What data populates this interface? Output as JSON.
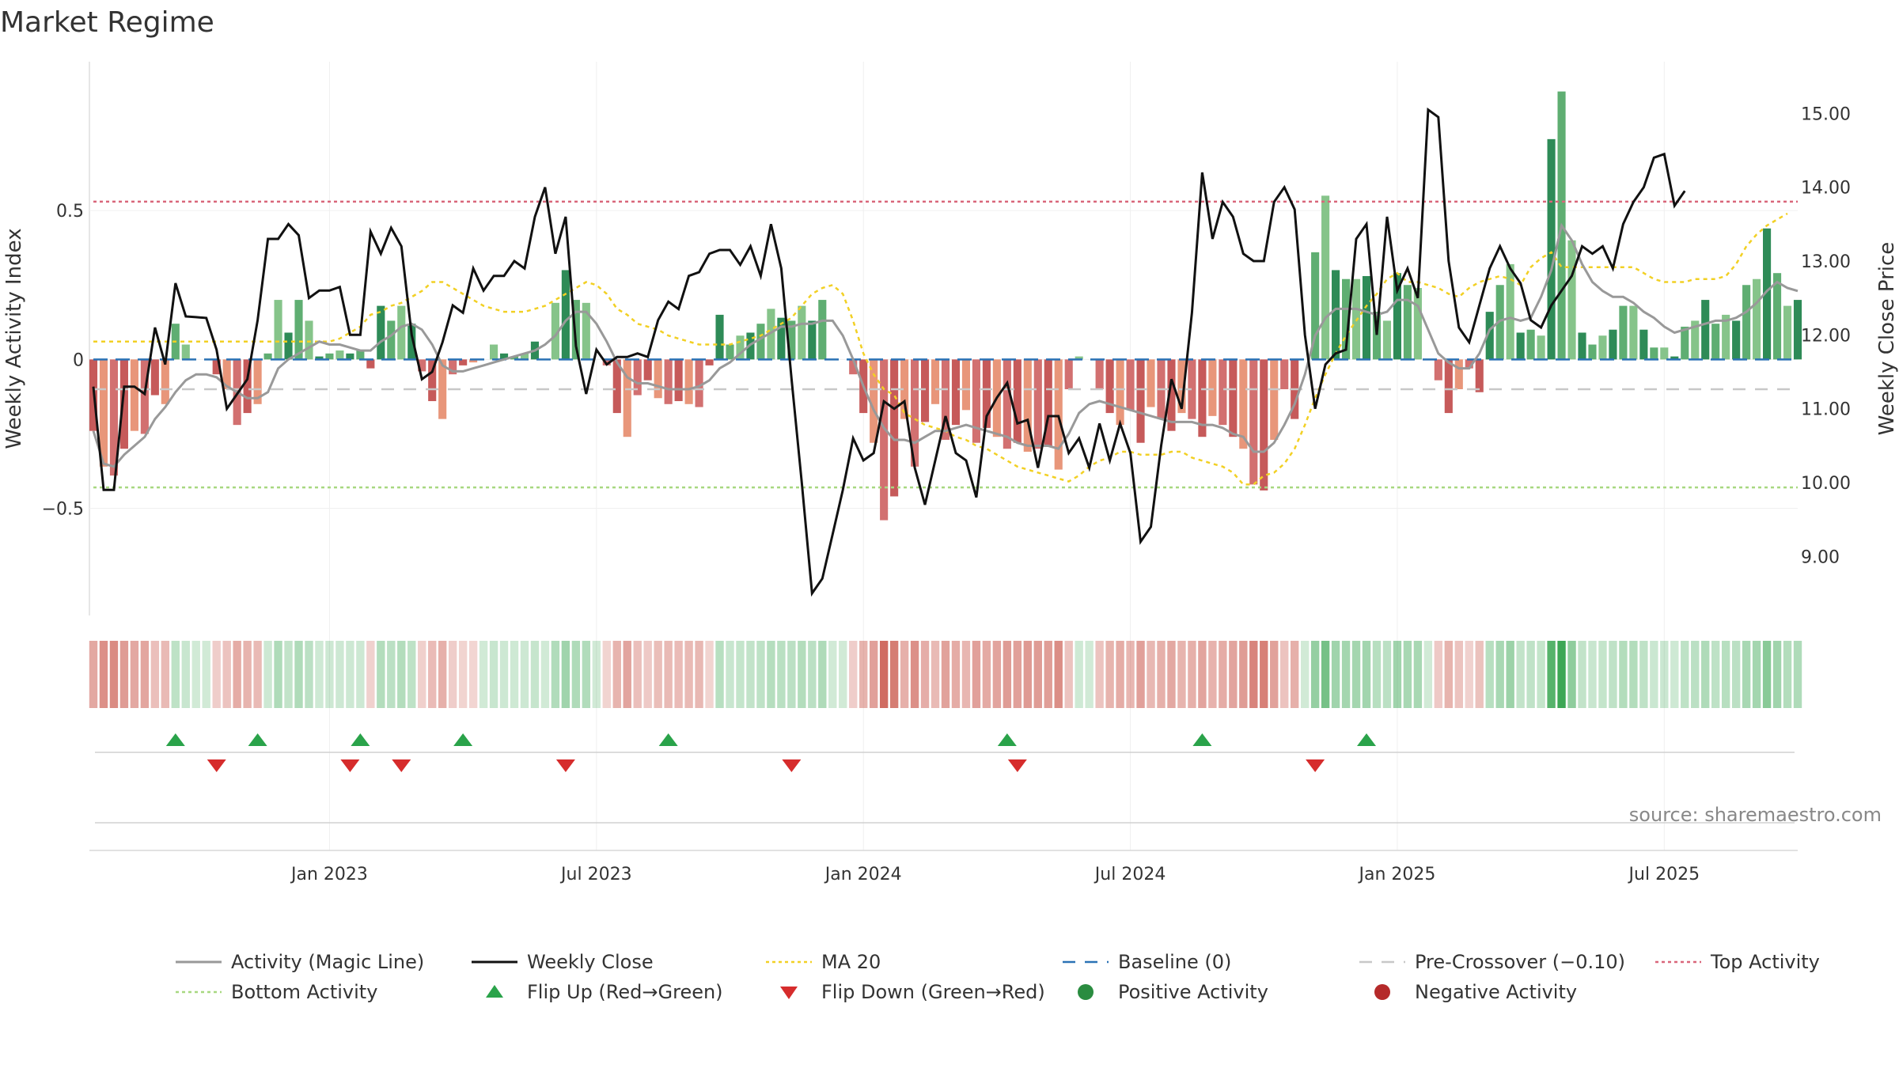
{
  "chart_data": {
    "type": "bar+line",
    "title": "Market Regime",
    "ylabel_left": "Weekly Activity Index",
    "ylabel_right": "Weekly Close Price",
    "source": "source: sharemaestro.com",
    "y_left_ticks": [
      "0.5",
      "0",
      "−0.5"
    ],
    "y_left_tick_values": [
      0.5,
      0,
      -0.5
    ],
    "y_right_ticks": [
      "15.00",
      "14.00",
      "13.00",
      "12.00",
      "11.00",
      "10.00",
      "9.00"
    ],
    "y_right_tick_values": [
      15,
      14,
      13,
      12,
      11,
      10,
      9
    ],
    "x_ticks": [
      {
        "label": "Jan 2023",
        "week": 23
      },
      {
        "label": "Jul 2023",
        "week": 49
      },
      {
        "label": "Jan 2024",
        "week": 75
      },
      {
        "label": "Jul 2024",
        "week": 101
      },
      {
        "label": "Jan 2025",
        "week": 127
      },
      {
        "label": "Jul 2025",
        "week": 153
      }
    ],
    "ylim_left": [
      -0.86,
      1.0
    ],
    "ylim_right": [
      8.2,
      15.7
    ],
    "reference_lines": {
      "top_activity": 0.53,
      "bottom_activity": -0.43,
      "baseline": 0,
      "pre_crossover": -0.1
    },
    "activity": [
      -0.24,
      -0.36,
      -0.39,
      -0.3,
      -0.24,
      -0.25,
      -0.12,
      -0.15,
      0.12,
      0.05,
      0.0,
      0.0,
      -0.05,
      -0.1,
      -0.22,
      -0.18,
      -0.15,
      0.02,
      0.2,
      0.09,
      0.2,
      0.13,
      0.01,
      0.02,
      0.03,
      0.02,
      0.03,
      -0.03,
      0.18,
      0.13,
      0.18,
      0.12,
      -0.04,
      -0.14,
      -0.2,
      -0.05,
      -0.02,
      -0.01,
      0.0,
      0.05,
      0.02,
      0.01,
      0.02,
      0.06,
      0.0,
      0.19,
      0.3,
      0.2,
      0.19,
      0.0,
      -0.02,
      -0.18,
      -0.26,
      -0.12,
      -0.07,
      -0.13,
      -0.15,
      -0.14,
      -0.15,
      -0.16,
      -0.02,
      0.15,
      0.05,
      0.08,
      0.09,
      0.12,
      0.17,
      0.14,
      0.13,
      0.18,
      0.13,
      0.2,
      0.0,
      0.0,
      -0.05,
      -0.18,
      -0.28,
      -0.54,
      -0.46,
      -0.2,
      -0.36,
      -0.21,
      -0.15,
      -0.27,
      -0.22,
      -0.17,
      -0.28,
      -0.23,
      -0.26,
      -0.3,
      -0.28,
      -0.31,
      -0.3,
      -0.29,
      -0.37,
      -0.1,
      0.01,
      0.0,
      -0.1,
      -0.18,
      -0.22,
      -0.17,
      -0.28,
      -0.16,
      -0.2,
      -0.24,
      -0.18,
      -0.2,
      -0.26,
      -0.19,
      -0.22,
      -0.26,
      -0.3,
      -0.42,
      -0.44,
      -0.27,
      -0.1,
      -0.2,
      0.0,
      0.36,
      0.55,
      0.3,
      0.27,
      0.27,
      0.28,
      0.16,
      0.13,
      0.29,
      0.25,
      0.24,
      0.0,
      -0.07,
      -0.18,
      -0.1,
      -0.03,
      -0.11,
      0.16,
      0.25,
      0.32,
      0.09,
      0.1,
      0.08,
      0.74,
      0.9,
      0.4,
      0.09,
      0.05,
      0.08,
      0.1,
      0.18,
      0.18,
      0.1,
      0.04,
      0.04,
      0.01,
      0.11,
      0.13,
      0.2,
      0.12,
      0.15,
      0.13,
      0.25,
      0.27,
      0.44,
      0.29,
      0.18,
      0.2
    ],
    "weekly_close": [
      11.3,
      9.9,
      9.9,
      11.3,
      11.3,
      11.2,
      12.1,
      11.6,
      12.7,
      12.25,
      12.24,
      12.23,
      11.8,
      11.0,
      11.2,
      11.4,
      12.2,
      13.3,
      13.3,
      13.5,
      13.35,
      12.5,
      12.6,
      12.6,
      12.65,
      12.0,
      12.0,
      13.4,
      13.1,
      13.45,
      13.2,
      12.0,
      11.4,
      11.5,
      11.9,
      12.4,
      12.3,
      12.9,
      12.6,
      12.8,
      12.8,
      13.0,
      12.9,
      13.6,
      14.0,
      13.1,
      13.6,
      11.85,
      11.2,
      11.8,
      11.6,
      11.7,
      11.7,
      11.75,
      11.7,
      12.2,
      12.45,
      12.35,
      12.8,
      12.85,
      13.1,
      13.15,
      13.15,
      12.95,
      13.2,
      12.8,
      13.5,
      12.9,
      11.4,
      10.0,
      8.5,
      8.7,
      9.3,
      9.9,
      10.6,
      10.3,
      10.4,
      11.1,
      11.0,
      11.1,
      10.2,
      9.7,
      10.3,
      10.9,
      10.4,
      10.3,
      9.8,
      10.9,
      11.15,
      11.35,
      10.8,
      10.85,
      10.2,
      10.9,
      10.9,
      10.4,
      10.6,
      10.2,
      10.8,
      10.3,
      10.8,
      10.4,
      9.2,
      9.4,
      10.5,
      11.4,
      11.0,
      12.3,
      14.2,
      13.3,
      13.8,
      13.6,
      13.1,
      13.0,
      13.0,
      13.8,
      14.0,
      13.7,
      12.0,
      11.0,
      11.6,
      11.75,
      11.8,
      13.3,
      13.5,
      12.0,
      13.6,
      12.6,
      12.9,
      12.5,
      15.05,
      14.95,
      13.0,
      12.1,
      11.9,
      12.4,
      12.9,
      13.2,
      12.9,
      12.7,
      12.2,
      12.1,
      12.4,
      12.6,
      12.8,
      13.2,
      13.1,
      13.2,
      12.9,
      13.5,
      13.8,
      14.0,
      14.4,
      14.45,
      13.75,
      13.95
    ],
    "magic_line": [
      -0.24,
      -0.35,
      -0.36,
      -0.32,
      -0.29,
      -0.26,
      -0.2,
      -0.16,
      -0.11,
      -0.07,
      -0.05,
      -0.05,
      -0.06,
      -0.09,
      -0.11,
      -0.13,
      -0.13,
      -0.11,
      -0.03,
      0.0,
      0.02,
      0.04,
      0.06,
      0.05,
      0.05,
      0.04,
      0.03,
      0.03,
      0.06,
      0.08,
      0.11,
      0.12,
      0.1,
      0.05,
      -0.02,
      -0.04,
      -0.04,
      -0.03,
      -0.02,
      -0.01,
      0.0,
      0.01,
      0.02,
      0.03,
      0.05,
      0.08,
      0.13,
      0.16,
      0.16,
      0.12,
      0.06,
      -0.01,
      -0.06,
      -0.08,
      -0.08,
      -0.09,
      -0.1,
      -0.1,
      -0.1,
      -0.09,
      -0.07,
      -0.03,
      -0.01,
      0.02,
      0.05,
      0.07,
      0.09,
      0.11,
      0.11,
      0.12,
      0.12,
      0.13,
      0.13,
      0.08,
      0.0,
      -0.09,
      -0.17,
      -0.23,
      -0.27,
      -0.27,
      -0.28,
      -0.26,
      -0.24,
      -0.24,
      -0.23,
      -0.22,
      -0.23,
      -0.24,
      -0.25,
      -0.26,
      -0.28,
      -0.29,
      -0.29,
      -0.29,
      -0.3,
      -0.25,
      -0.18,
      -0.15,
      -0.14,
      -0.15,
      -0.16,
      -0.17,
      -0.18,
      -0.19,
      -0.2,
      -0.21,
      -0.21,
      -0.21,
      -0.22,
      -0.22,
      -0.23,
      -0.25,
      -0.26,
      -0.31,
      -0.31,
      -0.28,
      -0.22,
      -0.15,
      -0.05,
      0.08,
      0.14,
      0.17,
      0.17,
      0.17,
      0.16,
      0.15,
      0.16,
      0.2,
      0.2,
      0.18,
      0.1,
      0.02,
      -0.01,
      -0.03,
      -0.03,
      0.02,
      0.1,
      0.13,
      0.14,
      0.13,
      0.14,
      0.21,
      0.3,
      0.45,
      0.4,
      0.32,
      0.26,
      0.23,
      0.21,
      0.21,
      0.19,
      0.16,
      0.14,
      0.11,
      0.09,
      0.1,
      0.11,
      0.12,
      0.13,
      0.13,
      0.14,
      0.16,
      0.19,
      0.23,
      0.26,
      0.24,
      0.23
    ],
    "ma20": [
      0.06,
      0.06,
      0.06,
      0.06,
      0.06,
      0.06,
      0.06,
      0.06,
      0.06,
      0.06,
      0.06,
      0.06,
      0.06,
      0.06,
      0.06,
      0.06,
      0.06,
      0.06,
      0.06,
      0.06,
      0.06,
      0.06,
      0.06,
      0.06,
      0.07,
      0.09,
      0.11,
      0.15,
      0.16,
      0.18,
      0.19,
      0.21,
      0.23,
      0.26,
      0.26,
      0.24,
      0.22,
      0.2,
      0.18,
      0.17,
      0.16,
      0.16,
      0.16,
      0.17,
      0.18,
      0.2,
      0.22,
      0.24,
      0.26,
      0.25,
      0.22,
      0.17,
      0.15,
      0.12,
      0.11,
      0.1,
      0.08,
      0.07,
      0.06,
      0.05,
      0.05,
      0.05,
      0.05,
      0.06,
      0.07,
      0.08,
      0.1,
      0.12,
      0.14,
      0.18,
      0.22,
      0.24,
      0.25,
      0.22,
      0.13,
      0.02,
      -0.05,
      -0.1,
      -0.12,
      -0.18,
      -0.2,
      -0.22,
      -0.23,
      -0.24,
      -0.26,
      -0.27,
      -0.29,
      -0.3,
      -0.32,
      -0.34,
      -0.36,
      -0.37,
      -0.38,
      -0.39,
      -0.4,
      -0.41,
      -0.39,
      -0.36,
      -0.34,
      -0.33,
      -0.31,
      -0.31,
      -0.32,
      -0.32,
      -0.32,
      -0.31,
      -0.31,
      -0.33,
      -0.34,
      -0.35,
      -0.36,
      -0.38,
      -0.42,
      -0.42,
      -0.39,
      -0.38,
      -0.35,
      -0.3,
      -0.22,
      -0.13,
      -0.05,
      0.02,
      0.08,
      0.13,
      0.18,
      0.22,
      0.27,
      0.29,
      0.26,
      0.26,
      0.25,
      0.24,
      0.22,
      0.21,
      0.24,
      0.26,
      0.27,
      0.28,
      0.27,
      0.25,
      0.31,
      0.34,
      0.36,
      0.31,
      0.31,
      0.31,
      0.31,
      0.31,
      0.31,
      0.31,
      0.31,
      0.29,
      0.27,
      0.26,
      0.26,
      0.26,
      0.27,
      0.27,
      0.27,
      0.28,
      0.32,
      0.38,
      0.42,
      0.45,
      0.47,
      0.49
    ],
    "regime_strip": "per-week red/green intensity derived from activity",
    "flip_up_weeks": [
      8,
      16,
      26,
      36,
      56,
      89,
      108,
      124
    ],
    "flip_down_weeks": [
      12,
      25,
      30,
      46,
      68,
      90,
      119
    ],
    "legend": [
      {
        "label": "Activity (Magic Line)",
        "symbol": "line",
        "color": "#999999"
      },
      {
        "label": "Weekly Close",
        "symbol": "line",
        "color": "#111111"
      },
      {
        "label": "MA 20",
        "symbol": "dotted",
        "color": "#f2d024"
      },
      {
        "label": "Baseline (0)",
        "symbol": "dashed",
        "color": "#2b72b5"
      },
      {
        "label": "Pre-Crossover (−0.10)",
        "symbol": "dashed",
        "color": "#c8c8c8"
      },
      {
        "label": "Top Activity",
        "symbol": "dotted",
        "color": "#d9667a"
      },
      {
        "label": "Bottom Activity",
        "symbol": "dotted",
        "color": "#a8d880"
      },
      {
        "label": "Flip Up (Red→Green)",
        "symbol": "triangle-up",
        "color": "#2aa34a"
      },
      {
        "label": "Flip Down (Green→Red)",
        "symbol": "triangle-down",
        "color": "#d62c2c"
      },
      {
        "label": "Positive Activity",
        "symbol": "circle",
        "color": "#2a8c40"
      },
      {
        "label": "Negative Activity",
        "symbol": "circle",
        "color": "#b52a2a"
      }
    ]
  }
}
